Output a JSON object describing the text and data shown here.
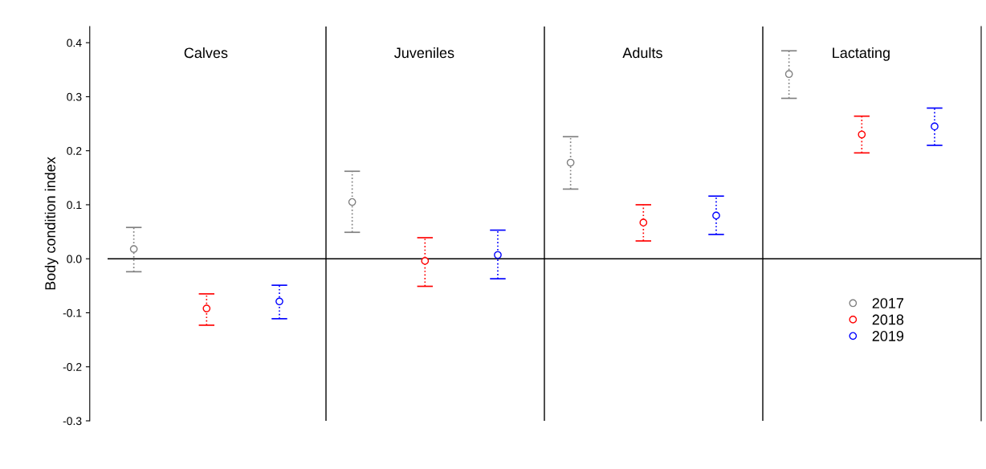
{
  "chart_data": {
    "type": "scatter",
    "ylabel": "Body condition index",
    "categories": [
      "Calves",
      "Juveniles",
      "Adults",
      "Lactating"
    ],
    "series": [
      {
        "name": "2017",
        "color": "#808080",
        "values": [
          0.018,
          0.105,
          0.178,
          0.342
        ],
        "errors": [
          [
            -0.024,
            0.058
          ],
          [
            0.049,
            0.162
          ],
          [
            0.129,
            0.226
          ],
          [
            0.297,
            0.385
          ]
        ]
      },
      {
        "name": "2018",
        "color": "#ff0000",
        "values": [
          -0.092,
          -0.004,
          0.067,
          0.23
        ],
        "errors": [
          [
            -0.123,
            -0.065
          ],
          [
            -0.051,
            0.039
          ],
          [
            0.033,
            0.1
          ],
          [
            0.196,
            0.264
          ]
        ]
      },
      {
        "name": "2019",
        "color": "#0000ff",
        "values": [
          -0.079,
          0.007,
          0.08,
          0.245
        ],
        "errors": [
          [
            -0.111,
            -0.049
          ],
          [
            -0.037,
            0.053
          ],
          [
            0.045,
            0.116
          ],
          [
            0.21,
            0.279
          ]
        ]
      }
    ],
    "ylim": [
      -0.3,
      0.43
    ],
    "yticks": [
      {
        "value": -0.3,
        "label": "-0.3"
      },
      {
        "value": -0.2,
        "label": "-0.2"
      },
      {
        "value": -0.1,
        "label": "-0.1"
      },
      {
        "value": 0.0,
        "label": "0.0"
      },
      0.1,
      0.2,
      0.3,
      0.4
    ],
    "ref_lines": [
      {
        "axis": "y",
        "value": 0,
        "color": "#000000",
        "line_style": "solid"
      }
    ],
    "tick_labels": "y",
    "grid": false,
    "legend": "bottom right",
    "marker": "circle",
    "line_style": "dotted"
  }
}
